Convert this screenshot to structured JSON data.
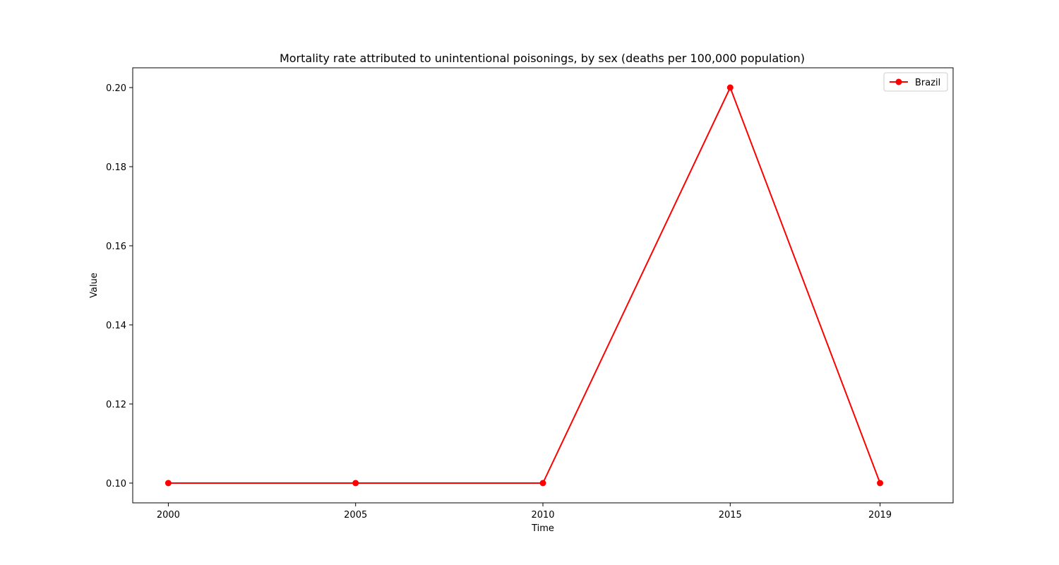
{
  "chart_data": {
    "type": "line",
    "title": "Mortality rate attributed to unintentional poisonings, by sex (deaths per 100,000 population)",
    "xlabel": "Time",
    "ylabel": "Value",
    "x": [
      2000,
      2005,
      2010,
      2015,
      2019
    ],
    "xticks": [
      "2000",
      "2005",
      "2010",
      "2015",
      "2019"
    ],
    "yticks": [
      "0.10",
      "0.12",
      "0.14",
      "0.16",
      "0.18",
      "0.20"
    ],
    "xlim": [
      1999.05,
      2020.95
    ],
    "ylim": [
      0.095,
      0.205
    ],
    "series": [
      {
        "name": "Brazil",
        "color": "#ff0000",
        "values": [
          0.1,
          0.1,
          0.1,
          0.2,
          0.1
        ]
      }
    ],
    "legend_position": "top-right",
    "grid": false
  }
}
